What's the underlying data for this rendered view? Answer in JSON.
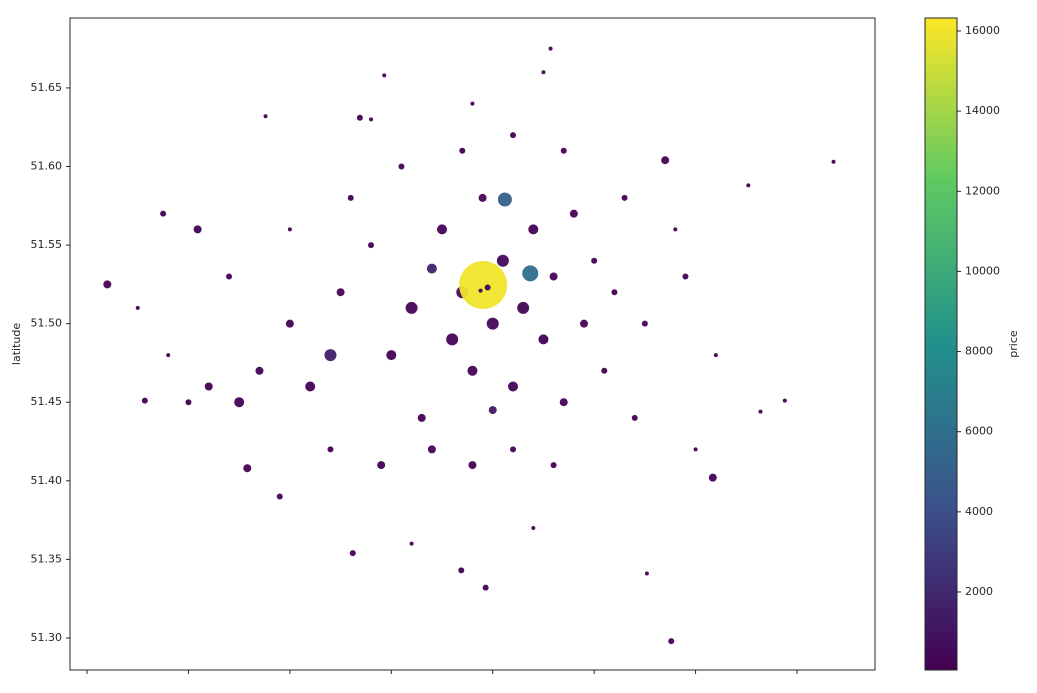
{
  "chart_data": {
    "type": "scatter",
    "y_label": "latitude",
    "colorbar_label": "price",
    "colormap": "viridis",
    "xlim": [
      -0.5168,
      0.2769
    ],
    "xticks": [
      -0.5,
      -0.4,
      -0.3,
      -0.2,
      -0.1,
      0,
      0.1,
      0.2
    ],
    "ylim": [
      51.2796,
      51.6945
    ],
    "yticks": [
      {
        "value": 51.3,
        "label": "51.30"
      },
      51.35,
      {
        "value": 51.4,
        "label": "51.40"
      },
      51.45,
      {
        "value": 51.5,
        "label": "51.50"
      },
      51.55,
      {
        "value": 51.6,
        "label": "51.60"
      },
      51.65
    ],
    "clim": [
      53,
      16324
    ],
    "cticks": [
      2000,
      4000,
      6000,
      8000,
      10000,
      12000,
      14000,
      16000
    ],
    "x": [
      -0.3,
      -0.28,
      -0.25,
      -0.22,
      -0.2,
      -0.18,
      -0.17,
      -0.15,
      -0.14,
      -0.13,
      -0.12,
      -0.11,
      -0.1,
      -0.09,
      -0.08,
      -0.07,
      -0.06,
      -0.05,
      -0.04,
      -0.03,
      -0.02,
      -0.01,
      0.0,
      0.01,
      0.02,
      0.03,
      0.04,
      0.05,
      -0.33,
      -0.35,
      -0.38,
      -0.4,
      -0.26,
      -0.21,
      -0.16,
      -0.12,
      -0.08,
      -0.04,
      -0.24,
      -0.19,
      -0.13,
      -0.08,
      -0.03,
      -0.16,
      -0.26,
      -0.1,
      0.09,
      0.12,
      0.08,
      -0.45,
      -0.42,
      -0.36,
      -0.3,
      -0.22,
      -0.12,
      -0.05,
      0.1,
      -0.31,
      -0.18,
      -0.06,
      -0.48,
      -0.425,
      -0.391,
      -0.443,
      0.076,
      0.117,
      0.07,
      0.236,
      -0.043,
      -0.207,
      -0.231,
      -0.238,
      -0.131,
      -0.107,
      0.052,
      0.164,
      0.188,
      0.152,
      -0.324,
      -0.342,
      -0.088,
      -0.063,
      -0.1095,
      -0.105,
      -0.112
    ],
    "values": [
      51.5,
      51.46,
      51.52,
      51.55,
      51.48,
      51.51,
      51.44,
      51.56,
      51.49,
      51.52,
      51.47,
      51.58,
      51.5,
      51.54,
      51.46,
      51.51,
      51.56,
      51.49,
      51.53,
      51.45,
      51.57,
      51.5,
      51.54,
      51.47,
      51.52,
      51.58,
      51.44,
      51.5,
      51.47,
      51.45,
      51.46,
      51.45,
      51.42,
      51.41,
      51.42,
      51.41,
      51.42,
      51.41,
      51.58,
      51.6,
      51.61,
      51.62,
      51.61,
      51.535,
      51.48,
      51.445,
      51.53,
      51.48,
      51.56,
      51.51,
      51.48,
      51.53,
      51.56,
      51.63,
      51.64,
      51.66,
      51.42,
      51.39,
      51.36,
      51.37,
      51.525,
      51.57,
      51.56,
      51.451,
      51.298,
      51.402,
      51.604,
      51.603,
      51.675,
      51.658,
      51.631,
      51.354,
      51.343,
      51.332,
      51.341,
      51.444,
      51.451,
      51.588,
      51.632,
      51.408,
      51.579,
      51.532,
      51.5246,
      51.523,
      51.521
    ],
    "price": [
      120,
      90,
      200,
      150,
      110,
      300,
      80,
      250,
      180,
      400,
      140,
      220,
      350,
      500,
      160,
      280,
      190,
      130,
      210,
      100,
      120,
      90,
      110,
      80,
      70,
      60,
      75,
      65,
      85,
      95,
      70,
      60,
      75,
      90,
      110,
      100,
      85,
      70,
      100,
      120,
      90,
      80,
      75,
      1800,
      1500,
      1200,
      60,
      55,
      50,
      50,
      55,
      60,
      70,
      60,
      55,
      50,
      50,
      60,
      55,
      50,
      80,
      70,
      90,
      75,
      60,
      70,
      80,
      50,
      50,
      55,
      60,
      70,
      65,
      60,
      50,
      50,
      55,
      50,
      50,
      70,
      5000,
      6000,
      16000,
      100,
      100
    ],
    "size": [
      4,
      5,
      4,
      3,
      5,
      6,
      4,
      5,
      6,
      6,
      5,
      4,
      6,
      6,
      5,
      6,
      5,
      5,
      4,
      4,
      4,
      4,
      3,
      3,
      3,
      3,
      3,
      3,
      4,
      5,
      4,
      3,
      3,
      4,
      4,
      4,
      3,
      3,
      3,
      3,
      3,
      3,
      3,
      5,
      6,
      4,
      3,
      2,
      2,
      2,
      2,
      3,
      2,
      2,
      2,
      2,
      2,
      3,
      2,
      2,
      4,
      3,
      4,
      3,
      3,
      4,
      4,
      2,
      2,
      2,
      3,
      3,
      3,
      3,
      2,
      2,
      2,
      2,
      2,
      4,
      7,
      8,
      24,
      3,
      2
    ]
  }
}
